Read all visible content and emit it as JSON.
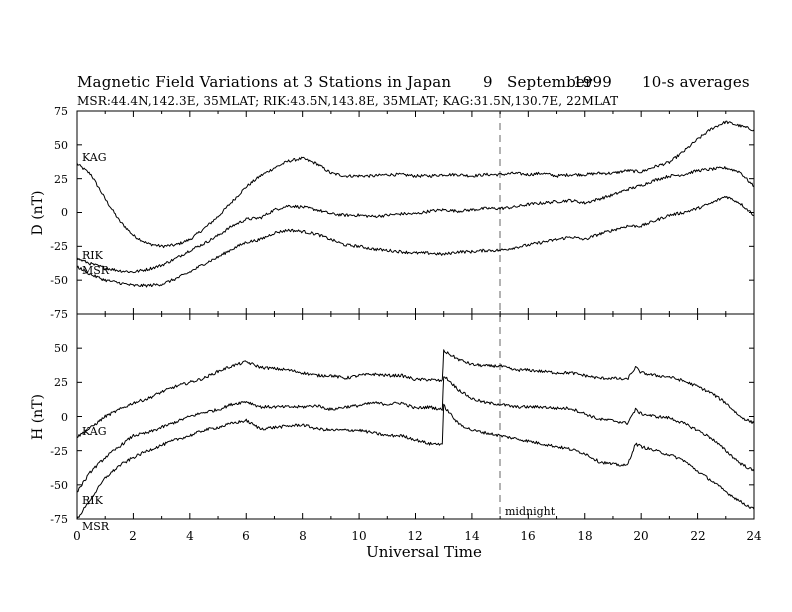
{
  "header": {
    "title": "Magnetic Field Variations at 3 Stations in Japan",
    "day": "9",
    "month": "September",
    "year": "1999",
    "avg": "10-s averages",
    "stations": "MSR:44.4N,142.3E, 35MLAT;  RIK:43.5N,143.8E, 35MLAT;  KAG:31.5N,130.7E, 22MLAT"
  },
  "chart_data": [
    {
      "type": "line",
      "ylabel": "D (nT)",
      "ylim": [
        -75,
        75
      ],
      "yticks": [
        "75",
        "50",
        "25",
        "0",
        "-25",
        "-50",
        "-75"
      ],
      "xlim": [
        0,
        24
      ],
      "series": [
        {
          "name": "KAG",
          "x": [
            0,
            0.5,
            1,
            1.5,
            2,
            2.5,
            3,
            3.5,
            4,
            4.5,
            5,
            5.5,
            6,
            6.5,
            7,
            7.5,
            8,
            8.5,
            9,
            9.5,
            10,
            10.5,
            11,
            11.5,
            12,
            12.5,
            13,
            13.5,
            14,
            14.5,
            15,
            15.5,
            16,
            16.5,
            17,
            17.5,
            18,
            18.5,
            19,
            19.5,
            20,
            20.5,
            21,
            21.5,
            22,
            22.5,
            23,
            23.5,
            24
          ],
          "y": [
            36,
            28,
            10,
            -6,
            -17,
            -23,
            -25,
            -24,
            -20,
            -12,
            -3,
            8,
            19,
            27,
            33,
            38,
            40,
            36,
            29,
            27,
            27,
            27,
            28,
            28,
            27,
            27,
            28,
            28,
            27,
            28,
            28,
            29,
            28,
            29,
            27,
            28,
            28,
            29,
            29,
            31,
            30,
            34,
            37,
            45,
            54,
            62,
            67,
            64,
            61
          ]
        },
        {
          "name": "RIK",
          "x": [
            0,
            0.5,
            1,
            1.5,
            2,
            2.5,
            3,
            3.5,
            4,
            4.5,
            5,
            5.5,
            6,
            6.5,
            7,
            7.5,
            8,
            8.5,
            9,
            9.5,
            10,
            10.5,
            11,
            11.5,
            12,
            12.5,
            13,
            13.5,
            14,
            14.5,
            15,
            15.5,
            16,
            16.5,
            17,
            17.5,
            18,
            18.5,
            19,
            19.5,
            20,
            20.5,
            21,
            21.5,
            22,
            22.5,
            23,
            23.5,
            24
          ],
          "y": [
            -34,
            -38,
            -41,
            -43,
            -44,
            -42,
            -39,
            -34,
            -28,
            -23,
            -17,
            -10,
            -5,
            -4,
            2,
            5,
            4,
            2,
            -1,
            -2,
            -2,
            -3,
            -2,
            -1,
            -1,
            1,
            2,
            1,
            2,
            3,
            3,
            4,
            6,
            7,
            8,
            9,
            7,
            10,
            13,
            17,
            20,
            24,
            27,
            28,
            31,
            32,
            33,
            30,
            19
          ]
        },
        {
          "name": "MSR",
          "x": [
            0,
            0.5,
            1,
            1.5,
            2,
            2.5,
            3,
            3.5,
            4,
            4.5,
            5,
            5.5,
            6,
            6.5,
            7,
            7.5,
            8,
            8.5,
            9,
            9.5,
            10,
            10.5,
            11,
            11.5,
            12,
            12.5,
            13,
            13.5,
            14,
            14.5,
            15,
            15.5,
            16,
            16.5,
            17,
            17.5,
            18,
            18.5,
            19,
            19.5,
            20,
            20.5,
            21,
            21.5,
            22,
            22.5,
            23,
            23.5,
            24
          ],
          "y": [
            -40,
            -46,
            -50,
            -52,
            -54,
            -54,
            -53,
            -49,
            -44,
            -38,
            -33,
            -27,
            -22,
            -20,
            -15,
            -13,
            -14,
            -16,
            -20,
            -24,
            -25,
            -27,
            -28,
            -29,
            -30,
            -30,
            -31,
            -29,
            -29,
            -28,
            -28,
            -26,
            -24,
            -22,
            -20,
            -18,
            -20,
            -16,
            -13,
            -10,
            -10,
            -6,
            -2,
            0,
            3,
            7,
            12,
            7,
            -2
          ]
        }
      ]
    },
    {
      "type": "line",
      "ylabel": "H (nT)",
      "ylim": [
        -75,
        75
      ],
      "yticks": [
        "50",
        "25",
        "0",
        "-25",
        "-50",
        "-75"
      ],
      "xlabel": "Universal Time",
      "xlim": [
        0,
        24
      ],
      "xticks": [
        "0",
        "2",
        "4",
        "6",
        "8",
        "10",
        "12",
        "14",
        "16",
        "18",
        "20",
        "22",
        "24"
      ],
      "annotation": {
        "x": 15,
        "label": "midnight"
      },
      "series": [
        {
          "name": "KAG",
          "x": [
            0,
            0.5,
            1,
            1.5,
            2,
            2.5,
            3,
            3.5,
            4,
            4.5,
            5,
            5.5,
            6,
            6.5,
            7,
            7.5,
            8,
            8.5,
            9,
            9.5,
            10,
            10.5,
            11,
            11.5,
            12,
            12.5,
            12.95,
            13,
            13.5,
            14,
            14.5,
            15,
            15.5,
            16,
            16.5,
            17,
            17.5,
            18,
            18.5,
            19,
            19.5,
            19.8,
            20,
            20.5,
            21,
            21.5,
            22,
            22.5,
            23,
            23.5,
            24
          ],
          "y": [
            -15,
            -8,
            0,
            5,
            10,
            13,
            18,
            22,
            25,
            28,
            33,
            37,
            40,
            36,
            35,
            34,
            32,
            30,
            30,
            28,
            30,
            31,
            30,
            30,
            27,
            27,
            26,
            48,
            42,
            38,
            37,
            37,
            34,
            34,
            33,
            32,
            32,
            30,
            28,
            28,
            27,
            36,
            32,
            30,
            29,
            26,
            22,
            17,
            10,
            0,
            -5
          ]
        },
        {
          "name": "RIK",
          "x": [
            0,
            0.5,
            1,
            1.5,
            2,
            2.5,
            3,
            3.5,
            4,
            4.5,
            5,
            5.5,
            6,
            6.5,
            7,
            7.5,
            8,
            8.5,
            9,
            9.5,
            10,
            10.5,
            11,
            11.5,
            12,
            12.5,
            12.95,
            13,
            13.5,
            14,
            14.5,
            15,
            15.5,
            16,
            16.5,
            17,
            17.5,
            18,
            18.5,
            19,
            19.5,
            19.8,
            20,
            20.5,
            21,
            21.5,
            22,
            22.5,
            23,
            23.5,
            24
          ],
          "y": [
            -55,
            -40,
            -30,
            -22,
            -14,
            -12,
            -8,
            -4,
            0,
            3,
            5,
            9,
            11,
            7,
            7,
            7,
            7,
            8,
            5,
            7,
            8,
            10,
            9,
            10,
            6,
            7,
            5,
            30,
            20,
            13,
            10,
            9,
            7,
            7,
            7,
            6,
            6,
            2,
            -2,
            -3,
            -5,
            5,
            2,
            0,
            -1,
            -5,
            -10,
            -16,
            -25,
            -34,
            -40
          ]
        },
        {
          "name": "MSR",
          "x": [
            0,
            0.5,
            1,
            1.5,
            2,
            2.5,
            3,
            3.5,
            4,
            4.5,
            5,
            5.5,
            6,
            6.5,
            7,
            7.5,
            8,
            8.5,
            9,
            9.5,
            10,
            10.5,
            11,
            11.5,
            12,
            12.5,
            12.95,
            13,
            13.5,
            14,
            14.5,
            15,
            15.5,
            16,
            16.5,
            17,
            17.5,
            18,
            18.5,
            19,
            19.5,
            19.8,
            20,
            20.5,
            21,
            21.5,
            22,
            22.5,
            23,
            23.5,
            24
          ],
          "y": [
            -75,
            -60,
            -45,
            -36,
            -30,
            -25,
            -21,
            -17,
            -14,
            -10,
            -8,
            -5,
            -3,
            -9,
            -8,
            -7,
            -6,
            -9,
            -10,
            -10,
            -10,
            -12,
            -14,
            -14,
            -17,
            -20,
            -20,
            8,
            -5,
            -10,
            -12,
            -14,
            -16,
            -18,
            -20,
            -22,
            -24,
            -27,
            -33,
            -35,
            -36,
            -20,
            -22,
            -25,
            -28,
            -32,
            -40,
            -47,
            -55,
            -62,
            -68
          ]
        }
      ]
    }
  ],
  "labels": {
    "d_KAG": "KAG",
    "d_RIK": "RIK",
    "d_MSR": "MSR",
    "h_KAG": "KAG",
    "h_RIK": "RIK",
    "h_MSR": "MSR"
  }
}
